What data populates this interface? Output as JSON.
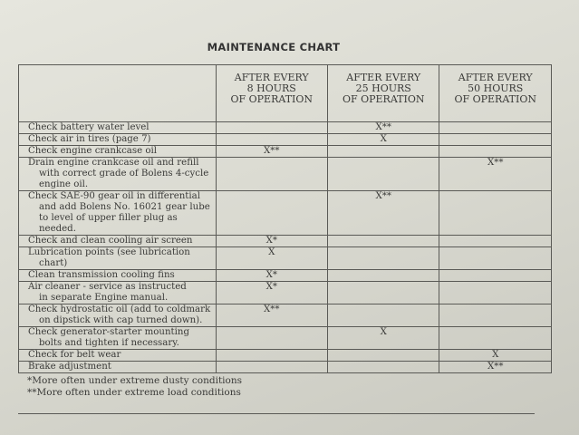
{
  "title": "MAINTENANCE CHART",
  "columns": [
    [
      "AFTER EVERY",
      "8 HOURS",
      "OF OPERATION"
    ],
    [
      "AFTER EVERY",
      "25 HOURS",
      "OF OPERATION"
    ],
    [
      "AFTER EVERY",
      "50 HOURS",
      "OF OPERATION"
    ]
  ],
  "rows": [
    {
      "task": [
        "Check battery water level"
      ],
      "marks": [
        "",
        "X**",
        ""
      ]
    },
    {
      "task": [
        "Check air in tires (page 7)"
      ],
      "marks": [
        "",
        "X",
        ""
      ]
    },
    {
      "task": [
        "Check engine crankcase oil"
      ],
      "marks": [
        "X**",
        "",
        ""
      ]
    },
    {
      "task": [
        "Drain engine crankcase oil and refill",
        "with correct grade of Bolens 4-cycle",
        "engine oil."
      ],
      "marks": [
        "",
        "",
        "X**"
      ]
    },
    {
      "task": [
        "Check SAE-90 gear oil in differential",
        "and add Bolens No. 16021 gear lube",
        "to level of upper filler plug as needed."
      ],
      "marks": [
        "",
        "X**",
        ""
      ]
    },
    {
      "task": [
        "Check and clean cooling air screen"
      ],
      "marks": [
        "X*",
        "",
        ""
      ]
    },
    {
      "task": [
        "Lubrication points (see lubrication",
        "chart)"
      ],
      "marks": [
        "X",
        "",
        ""
      ]
    },
    {
      "task": [
        "Clean transmission cooling fins"
      ],
      "marks": [
        "X*",
        "",
        ""
      ]
    },
    {
      "task": [
        "Air cleaner - service as instructed",
        "in separate Engine manual."
      ],
      "marks": [
        "X*",
        "",
        ""
      ]
    },
    {
      "task": [
        "Check hydrostatic oil (add to coldmark",
        "on dipstick with cap turned down)."
      ],
      "marks": [
        "X**",
        "",
        ""
      ]
    },
    {
      "task": [
        "Check generator-starter mounting",
        "bolts and tighten if necessary."
      ],
      "marks": [
        "",
        "X",
        ""
      ]
    },
    {
      "task": [
        "Check for belt wear"
      ],
      "marks": [
        "",
        "",
        "X"
      ]
    },
    {
      "task": [
        "Brake adjustment"
      ],
      "marks": [
        "",
        "",
        "X**"
      ]
    }
  ],
  "footnotes": [
    "*More often under extreme dusty conditions",
    "**More often under extreme load conditions"
  ]
}
